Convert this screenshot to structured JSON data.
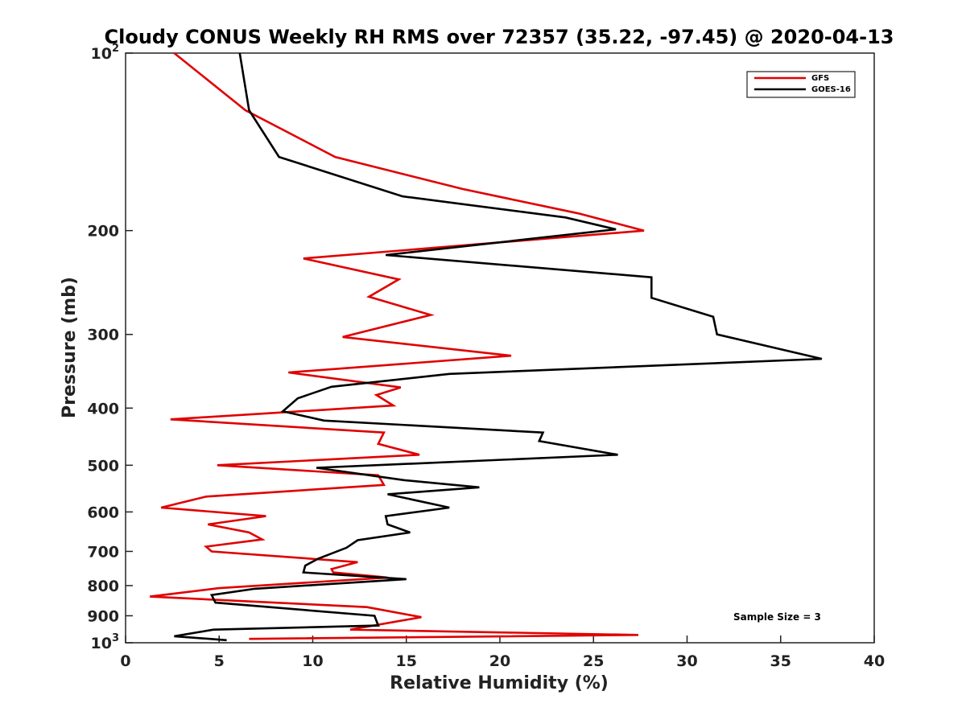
{
  "chart_data": {
    "type": "line",
    "title": "Cloudy CONUS Weekly RH RMS over 72357 (35.22, -97.45) @ 2020-04-13",
    "xlabel": "Relative Humidity (%)",
    "ylabel": "Pressure (mb)",
    "xlim": [
      0,
      40
    ],
    "ylim": [
      100,
      1000
    ],
    "y_scale": "log",
    "y_reversed": true,
    "grid": false,
    "legend_position": "top-right",
    "annotation": "Sample Size = 3",
    "x_ticks": [
      "0",
      "5",
      "10",
      "15",
      "20",
      "25",
      "30",
      "35",
      "40"
    ],
    "y_ticks": [
      {
        "value": 100,
        "base": "10",
        "exp": "2"
      },
      {
        "value": 200,
        "label": "200"
      },
      {
        "value": 300,
        "label": "300"
      },
      {
        "value": 400,
        "label": "400"
      },
      {
        "value": 500,
        "label": "500"
      },
      {
        "value": 600,
        "label": "600"
      },
      {
        "value": 700,
        "label": "700"
      },
      {
        "value": 800,
        "label": "800"
      },
      {
        "value": 900,
        "label": "900"
      },
      {
        "value": 1000,
        "base": "10",
        "exp": "3"
      }
    ],
    "series": [
      {
        "name": "GFS",
        "color": "#e00000",
        "points": [
          [
            2.6,
            100
          ],
          [
            6.4,
            125
          ],
          [
            11.2,
            150
          ],
          [
            18.0,
            170
          ],
          [
            24.2,
            187
          ],
          [
            27.7,
            200
          ],
          [
            9.5,
            223
          ],
          [
            14.6,
            242
          ],
          [
            13.0,
            259
          ],
          [
            16.3,
            278
          ],
          [
            11.6,
            303
          ],
          [
            20.6,
            326
          ],
          [
            8.7,
            348
          ],
          [
            14.7,
            369
          ],
          [
            13.4,
            380
          ],
          [
            14.3,
            396
          ],
          [
            2.4,
            418
          ],
          [
            13.8,
            440
          ],
          [
            13.5,
            460
          ],
          [
            15.7,
            480
          ],
          [
            4.9,
            500
          ],
          [
            13.5,
            520
          ],
          [
            13.8,
            540
          ],
          [
            4.3,
            565
          ],
          [
            1.9,
            590
          ],
          [
            7.5,
            610
          ],
          [
            4.4,
            630
          ],
          [
            6.6,
            650
          ],
          [
            7.3,
            668
          ],
          [
            4.3,
            687
          ],
          [
            4.6,
            700
          ],
          [
            12.4,
            730
          ],
          [
            11.0,
            750
          ],
          [
            11.1,
            760
          ],
          [
            14.0,
            775
          ],
          [
            5.0,
            808
          ],
          [
            1.3,
            835
          ],
          [
            12.9,
            870
          ],
          [
            15.8,
            905
          ],
          [
            12.0,
            950
          ],
          [
            27.4,
            970
          ],
          [
            6.6,
            985
          ]
        ]
      },
      {
        "name": "GOES-16",
        "color": "#000000",
        "points": [
          [
            6.1,
            100
          ],
          [
            6.6,
            125
          ],
          [
            8.2,
            150
          ],
          [
            14.8,
            175
          ],
          [
            23.5,
            190
          ],
          [
            26.2,
            199
          ],
          [
            13.9,
            220
          ],
          [
            28.1,
            240
          ],
          [
            28.1,
            260
          ],
          [
            31.4,
            280
          ],
          [
            31.6,
            300
          ],
          [
            37.2,
            330
          ],
          [
            17.3,
            350
          ],
          [
            11.0,
            368
          ],
          [
            9.2,
            385
          ],
          [
            8.4,
            405
          ],
          [
            10.6,
            420
          ],
          [
            22.3,
            440
          ],
          [
            22.1,
            455
          ],
          [
            26.3,
            480
          ],
          [
            10.2,
            505
          ],
          [
            14.9,
            530
          ],
          [
            18.9,
            545
          ],
          [
            14.0,
            560
          ],
          [
            17.3,
            590
          ],
          [
            13.9,
            610
          ],
          [
            14.0,
            630
          ],
          [
            15.2,
            650
          ],
          [
            12.4,
            670
          ],
          [
            11.8,
            690
          ],
          [
            10.3,
            720
          ],
          [
            9.6,
            740
          ],
          [
            9.5,
            760
          ],
          [
            15.0,
            780
          ],
          [
            6.9,
            810
          ],
          [
            4.6,
            830
          ],
          [
            4.8,
            855
          ],
          [
            13.3,
            900
          ],
          [
            13.5,
            935
          ],
          [
            4.7,
            950
          ],
          [
            2.6,
            975
          ],
          [
            5.4,
            990
          ]
        ]
      }
    ]
  }
}
